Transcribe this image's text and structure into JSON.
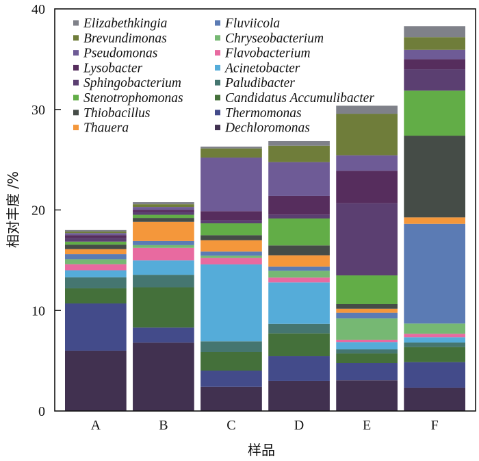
{
  "chart_data": {
    "type": "bar",
    "stacked": true,
    "title": "",
    "xlabel": "样品",
    "ylabel": "相对丰度 /%",
    "ylim": [
      0,
      40
    ],
    "yticks": [
      0,
      10,
      20,
      30,
      40
    ],
    "grid": false,
    "legend_position": "top-left, inside plot, two columns",
    "categories": [
      "A",
      "B",
      "C",
      "D",
      "E",
      "F"
    ],
    "series": [
      {
        "name": "Dechloromonas",
        "color": "#413150",
        "values": [
          6.0,
          6.8,
          2.4,
          3.0,
          3.05,
          2.32
        ]
      },
      {
        "name": "Thermomonas",
        "color": "#434b8a",
        "values": [
          4.7,
          1.5,
          1.62,
          2.45,
          1.72,
          2.54
        ]
      },
      {
        "name": "Candidatus Accumulibacter",
        "color": "#44703a",
        "values": [
          1.5,
          4.0,
          1.84,
          2.27,
          0.95,
          1.5
        ]
      },
      {
        "name": "Paludibacter",
        "color": "#457670",
        "values": [
          1.1,
          1.25,
          1.07,
          0.95,
          0.41,
          0.45
        ]
      },
      {
        "name": "Acinetobacter",
        "color": "#55acd9",
        "values": [
          0.7,
          1.43,
          7.65,
          4.12,
          0.73,
          0.53
        ]
      },
      {
        "name": "Flavobacterium",
        "color": "#e86aa0",
        "values": [
          0.6,
          1.25,
          0.64,
          0.48,
          0.23,
          0.34
        ]
      },
      {
        "name": "Chryseobacterium",
        "color": "#76b873",
        "values": [
          0.5,
          0.27,
          0.23,
          0.68,
          2.13,
          1.02
        ]
      },
      {
        "name": "Fluviicola",
        "color": "#5b7bb4",
        "values": [
          0.5,
          0.41,
          0.41,
          0.41,
          0.55,
          9.92
        ]
      },
      {
        "name": "Thauera",
        "color": "#f4973b",
        "values": [
          0.5,
          1.91,
          1.13,
          1.13,
          0.4,
          0.64
        ]
      },
      {
        "name": "Thiobacillus",
        "color": "#454c47",
        "values": [
          0.45,
          0.39,
          0.5,
          0.98,
          0.46,
          8.13
        ]
      },
      {
        "name": "Stenotrophomonas",
        "color": "#62ad47",
        "values": [
          0.3,
          0.31,
          1.18,
          2.68,
          2.86,
          4.48
        ]
      },
      {
        "name": "Sphingobacterium",
        "color": "#5b3f71",
        "values": [
          0.35,
          0.28,
          0.3,
          0.39,
          7.18,
          2.13
        ]
      },
      {
        "name": "Lysobacter",
        "color": "#562d5d",
        "values": [
          0.3,
          0.22,
          0.91,
          1.86,
          3.23,
          1.0
        ]
      },
      {
        "name": "Pseudomonas",
        "color": "#6e5b96",
        "values": [
          0.2,
          0.28,
          5.33,
          3.36,
          1.54,
          0.93
        ]
      },
      {
        "name": "Brevundimonas",
        "color": "#6f7d3a",
        "values": [
          0.15,
          0.27,
          0.91,
          1.63,
          4.13,
          1.26
        ]
      },
      {
        "name": "Elizabethkingia",
        "color": "#7f8189",
        "values": [
          0.15,
          0.21,
          0.18,
          0.46,
          0.8,
          1.09
        ]
      }
    ],
    "legend": {
      "columns": [
        [
          "Elizabethkingia",
          "Brevundimonas",
          "Pseudomonas",
          "Lysobacter",
          "Sphingobacterium",
          "Stenotrophomonas",
          "Thiobacillus",
          "Thauera"
        ],
        [
          "Fluviicola",
          "Chryseobacterium",
          "Flavobacterium",
          "Acinetobacter",
          "Paludibacter",
          "Candidatus Accumulibacter",
          "Thermomonas",
          "Dechloromonas"
        ]
      ]
    }
  }
}
